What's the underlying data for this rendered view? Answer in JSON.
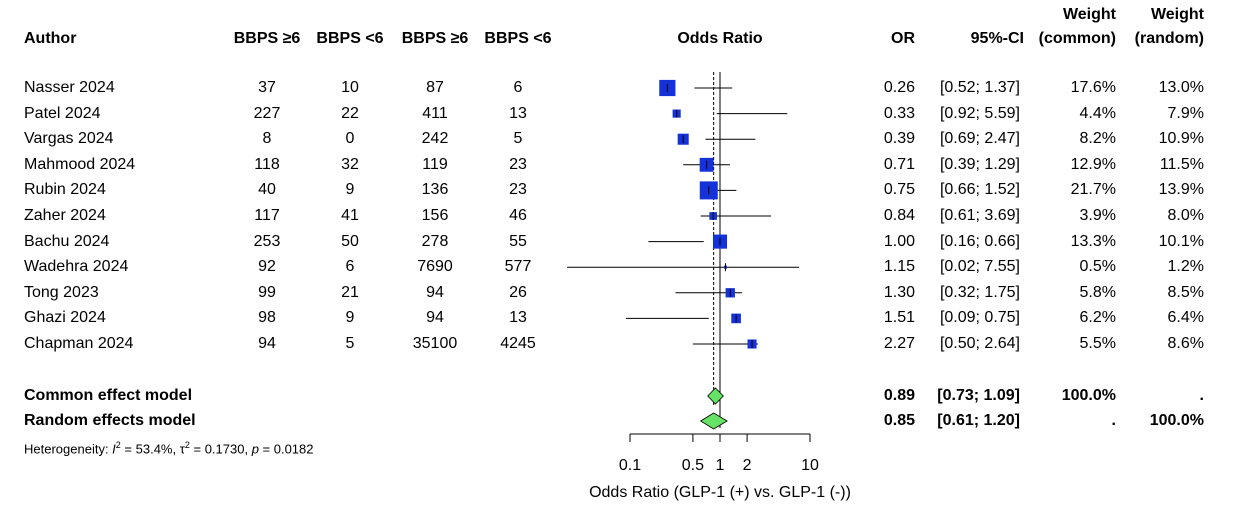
{
  "headers": {
    "author": "Author",
    "col1": "BBPS ≥6",
    "col2": "BBPS <6",
    "col3": "BBPS ≥6",
    "col4": "BBPS <6",
    "odds_ratio": "Odds Ratio",
    "or": "OR",
    "ci": "95%-CI",
    "weight_common_top": "Weight",
    "weight_common_bottom": "(common)",
    "weight_random_top": "Weight",
    "weight_random_bottom": "(random)"
  },
  "studies": [
    {
      "author": "Nasser 2024",
      "c1": "37",
      "c2": "10",
      "c3": "87",
      "c4": "6",
      "or": "0.26",
      "ci": "[0.52; 1.37]",
      "wc": "17.6%",
      "wr": "13.0%"
    },
    {
      "author": "Patel 2024",
      "c1": "227",
      "c2": "22",
      "c3": "411",
      "c4": "13",
      "or": "0.33",
      "ci": "[0.92; 5.59]",
      "wc": "4.4%",
      "wr": "7.9%"
    },
    {
      "author": "Vargas 2024",
      "c1": "8",
      "c2": "0",
      "c3": "242",
      "c4": "5",
      "or": "0.39",
      "ci": "[0.69; 2.47]",
      "wc": "8.2%",
      "wr": "10.9%"
    },
    {
      "author": "Mahmood 2024",
      "c1": "118",
      "c2": "32",
      "c3": "119",
      "c4": "23",
      "or": "0.71",
      "ci": "[0.39; 1.29]",
      "wc": "12.9%",
      "wr": "11.5%"
    },
    {
      "author": "Rubin 2024",
      "c1": "40",
      "c2": "9",
      "c3": "136",
      "c4": "23",
      "or": "0.75",
      "ci": "[0.66; 1.52]",
      "wc": "21.7%",
      "wr": "13.9%"
    },
    {
      "author": "Zaher 2024",
      "c1": "117",
      "c2": "41",
      "c3": "156",
      "c4": "46",
      "or": "0.84",
      "ci": "[0.61; 3.69]",
      "wc": "3.9%",
      "wr": "8.0%"
    },
    {
      "author": "Bachu 2024",
      "c1": "253",
      "c2": "50",
      "c3": "278",
      "c4": "55",
      "or": "1.00",
      "ci": "[0.16; 0.66]",
      "wc": "13.3%",
      "wr": "10.1%"
    },
    {
      "author": "Wadehra 2024",
      "c1": "92",
      "c2": "6",
      "c3": "7690",
      "c4": "577",
      "or": "1.15",
      "ci": "[0.02; 7.55]",
      "wc": "0.5%",
      "wr": "1.2%"
    },
    {
      "author": "Tong 2023",
      "c1": "99",
      "c2": "21",
      "c3": "94",
      "c4": "26",
      "or": "1.30",
      "ci": "[0.32; 1.75]",
      "wc": "5.8%",
      "wr": "8.5%"
    },
    {
      "author": "Ghazi 2024",
      "c1": "98",
      "c2": "9",
      "c3": "94",
      "c4": "13",
      "or": "1.51",
      "ci": "[0.09; 0.75]",
      "wc": "6.2%",
      "wr": "6.4%"
    },
    {
      "author": "Chapman 2024",
      "c1": "94",
      "c2": "5",
      "c3": "35100",
      "c4": "4245",
      "or": "2.27",
      "ci": "[0.50; 2.64]",
      "wc": "5.5%",
      "wr": "8.6%"
    }
  ],
  "models": [
    {
      "label": "Common effect model",
      "or": "0.89",
      "ci": "[0.73; 1.09]",
      "wc": "100.0%",
      "wr": "."
    },
    {
      "label": "Random effects model",
      "or": "0.85",
      "ci": "[0.61; 1.20]",
      "wc": ".",
      "wr": "100.0%"
    }
  ],
  "heterogeneity": {
    "prefix": "Heterogeneity: ",
    "i2_symbol": "I",
    "i2_value": " = 53.4%, ",
    "tau_symbol": "τ",
    "tau_value": " = 0.1730, ",
    "p_symbol": "p",
    "p_value": " = 0.0182"
  },
  "colors": {
    "study_square": "#1432d8",
    "diamond": "#66e266",
    "line": "#000000"
  },
  "chart_data": {
    "type": "forest",
    "scale": "log",
    "xlim": [
      0.1,
      10
    ],
    "ticks": [
      0.1,
      0.5,
      1,
      2,
      10
    ],
    "tick_labels": [
      "0.1",
      "0.5",
      "1",
      "2",
      "10"
    ],
    "xlabel": "Odds Ratio (GLP-1 (+) vs. GLP-1 (-))",
    "title": "Odds Ratio",
    "reference_line": 1,
    "study_markers": [
      {
        "label": "Nasser 2024",
        "or": 0.26,
        "lo": 0.52,
        "hi": 1.37,
        "weight": 17.6
      },
      {
        "label": "Patel 2024",
        "or": 0.33,
        "lo": 0.92,
        "hi": 5.59,
        "weight": 4.4
      },
      {
        "label": "Vargas 2024",
        "or": 0.39,
        "lo": 0.69,
        "hi": 2.47,
        "weight": 8.2
      },
      {
        "label": "Mahmood 2024",
        "or": 0.71,
        "lo": 0.39,
        "hi": 1.29,
        "weight": 12.9
      },
      {
        "label": "Rubin 2024",
        "or": 0.75,
        "lo": 0.66,
        "hi": 1.52,
        "weight": 21.7
      },
      {
        "label": "Zaher 2024",
        "or": 0.84,
        "lo": 0.61,
        "hi": 3.69,
        "weight": 3.9
      },
      {
        "label": "Bachu 2024",
        "or": 1.0,
        "lo": 0.16,
        "hi": 0.66,
        "weight": 13.3
      },
      {
        "label": "Wadehra 2024",
        "or": 1.15,
        "lo": 0.02,
        "hi": 7.55,
        "weight": 0.5
      },
      {
        "label": "Tong 2023",
        "or": 1.3,
        "lo": 0.32,
        "hi": 1.75,
        "weight": 5.8
      },
      {
        "label": "Ghazi 2024",
        "or": 1.51,
        "lo": 0.09,
        "hi": 0.75,
        "weight": 6.2
      },
      {
        "label": "Chapman 2024",
        "or": 2.27,
        "lo": 0.5,
        "hi": 2.64,
        "weight": 5.5
      }
    ],
    "summary_diamonds": [
      {
        "label": "Common effect model",
        "or": 0.89,
        "lo": 0.73,
        "hi": 1.09
      },
      {
        "label": "Random effects model",
        "or": 0.85,
        "lo": 0.61,
        "hi": 1.2
      }
    ]
  }
}
